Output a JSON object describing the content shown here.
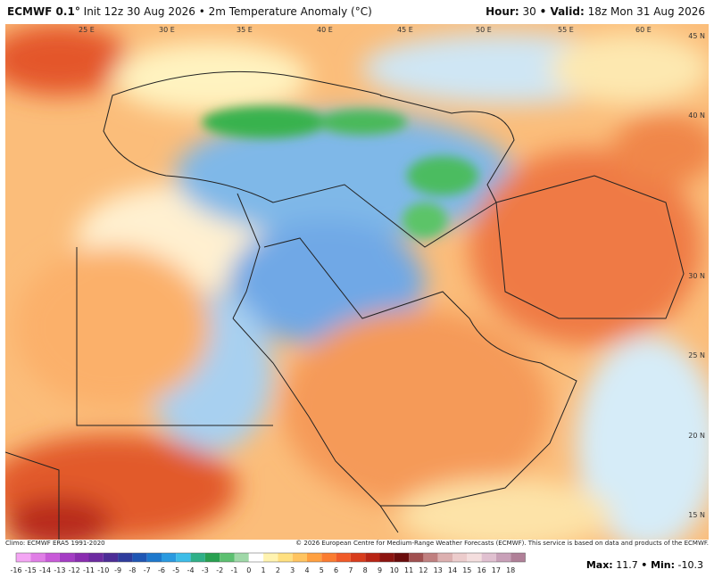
{
  "header": {
    "model": "ECMWF 0.1°",
    "init": "Init 12z 30 Aug 2026 • 2m Temperature Anomaly (°C)",
    "hour_label": "Hour:",
    "hour": "30",
    "valid_label": "• Valid:",
    "valid": "18z Mon 31 Aug 2026"
  },
  "map": {
    "lon_labels": [
      "25 E",
      "30 E",
      "35 E",
      "40 E",
      "45 E",
      "50 E",
      "55 E",
      "60 E"
    ],
    "lat_labels": [
      "45 N",
      "40 N",
      "30 N",
      "25 N",
      "20 N",
      "15 N"
    ]
  },
  "footer": {
    "climo": "Climo: ECMWF ERA5 1991-2020",
    "copyright": "© 2026 European Centre for Medium-Range Weather Forecasts (ECMWF). This service is based on data and products of the ECMWF."
  },
  "colorbar": {
    "ticks": [
      -16,
      -15,
      -14,
      -13,
      -12,
      -11,
      -10,
      -9,
      -8,
      -7,
      -6,
      -5,
      -4,
      -3,
      -2,
      -1,
      0,
      1,
      2,
      3,
      4,
      5,
      6,
      7,
      8,
      9,
      10,
      11,
      12,
      13,
      14,
      15,
      16,
      17,
      18
    ],
    "colors": [
      "#f4a6f4",
      "#e07ee6",
      "#c85ad8",
      "#a43cc4",
      "#8a2cb0",
      "#6c2aa0",
      "#4c2c96",
      "#2e3c9c",
      "#1f56b4",
      "#1e78cc",
      "#2a9ae0",
      "#3dbde8",
      "#2fb088",
      "#28a050",
      "#5cc070",
      "#9fd8a8",
      "#ffffff",
      "#fff3b0",
      "#ffe080",
      "#ffc460",
      "#ffa040",
      "#fb7c30",
      "#f05a28",
      "#d83c1c",
      "#b82414",
      "#8c1410",
      "#6a0c0c",
      "#a05050",
      "#c08080",
      "#dcb0b0",
      "#eccccc",
      "#f4dede",
      "#e0c0d0",
      "#c8a0b8",
      "#b08098"
    ]
  },
  "extremes": {
    "max_label": "Max:",
    "max": 11.7,
    "min_label": "• Min:",
    "min": -10.3
  }
}
